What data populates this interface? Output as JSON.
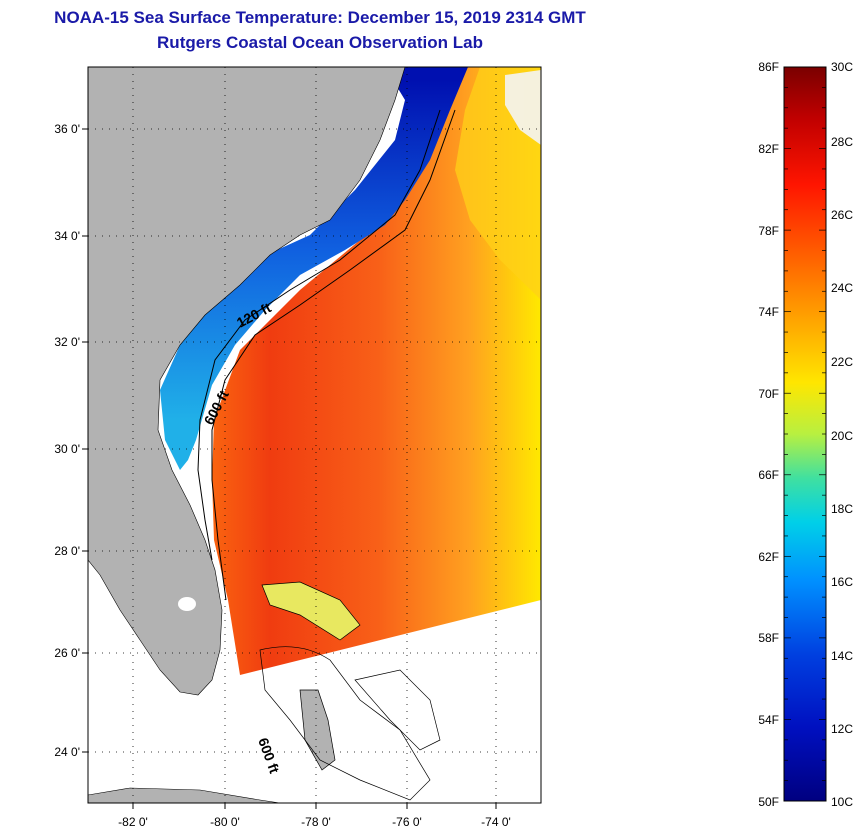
{
  "header": {
    "title": "NOAA-15 Sea Surface Temperature:  December 15, 2019 2314 GMT",
    "subtitle": "Rutgers Coastal Ocean Observation Lab"
  },
  "map": {
    "lat_labels": [
      "36 0'",
      "34 0'",
      "32 0'",
      "30 0'",
      "28 0'",
      "26 0'",
      "24 0'"
    ],
    "lon_labels": [
      "-82 0'",
      "-80 0'",
      "-78 0'",
      "-76 0'",
      "-74 0'"
    ],
    "isobaths": [
      "120 ft",
      "600 ft",
      "600 ft"
    ]
  },
  "colorbar": {
    "fahrenheit": [
      "86F",
      "82F",
      "78F",
      "74F",
      "70F",
      "66F",
      "62F",
      "58F",
      "54F",
      "50F"
    ],
    "celsius": [
      "30C",
      "28C",
      "26C",
      "24C",
      "22C",
      "20C",
      "18C",
      "16C",
      "14C",
      "12C",
      "10C"
    ]
  },
  "colors": {
    "title": "#1a1aa8",
    "land": "#b2b2b2",
    "warm": "#e83a10",
    "cold": "#0000a8"
  }
}
